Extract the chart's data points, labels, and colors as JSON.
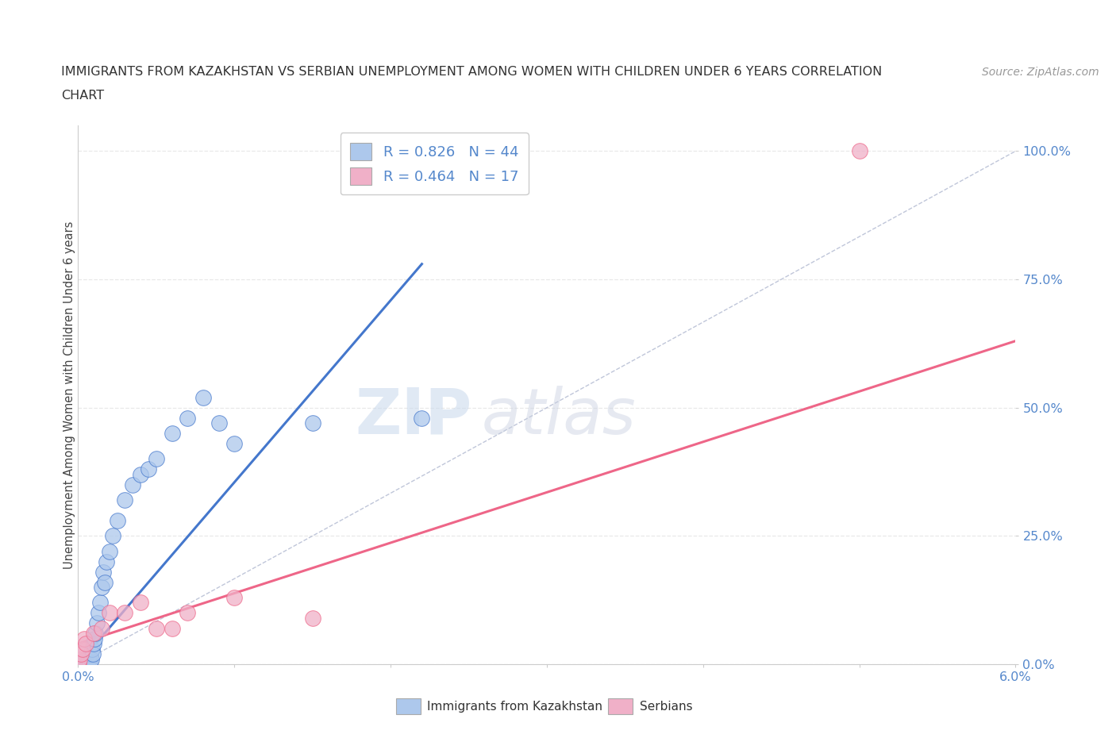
{
  "title_line1": "IMMIGRANTS FROM KAZAKHSTAN VS SERBIAN UNEMPLOYMENT AMONG WOMEN WITH CHILDREN UNDER 6 YEARS CORRELATION",
  "title_line2": "CHART",
  "source_text": "Source: ZipAtlas.com",
  "ylabel": "Unemployment Among Women with Children Under 6 years",
  "xmin": 0.0,
  "xmax": 0.06,
  "ymin": 0.0,
  "ymax": 1.05,
  "ytick_values": [
    0.0,
    0.25,
    0.5,
    0.75,
    1.0
  ],
  "xtick_values": [
    0.0,
    0.01,
    0.02,
    0.03,
    0.04,
    0.05,
    0.06
  ],
  "kaz_color": "#adc8ec",
  "ser_color": "#f0b0c8",
  "kaz_line_color": "#4477cc",
  "ser_line_color": "#ee6688",
  "ref_line_color": "#b0b8d0",
  "R_kaz": 0.826,
  "N_kaz": 44,
  "R_ser": 0.464,
  "N_ser": 17,
  "kaz_scatter_x": [
    5e-05,
    0.0001,
    0.00015,
    0.0002,
    0.00025,
    0.0003,
    0.00035,
    0.0004,
    0.00045,
    0.0005,
    0.00055,
    0.0006,
    0.00065,
    0.0007,
    0.00075,
    0.0008,
    0.00085,
    0.0009,
    0.00095,
    0.001,
    0.00105,
    0.0011,
    0.0012,
    0.0013,
    0.0014,
    0.0015,
    0.0016,
    0.0017,
    0.0018,
    0.002,
    0.0022,
    0.0025,
    0.003,
    0.0035,
    0.004,
    0.0045,
    0.005,
    0.006,
    0.007,
    0.008,
    0.009,
    0.01,
    0.015,
    0.022
  ],
  "kaz_scatter_y": [
    0.0,
    0.0,
    0.0,
    0.0,
    0.0,
    0.0,
    0.0,
    0.005,
    0.0,
    0.01,
    0.0,
    0.0,
    0.005,
    0.01,
    0.005,
    0.02,
    0.01,
    0.03,
    0.02,
    0.04,
    0.05,
    0.06,
    0.08,
    0.1,
    0.12,
    0.15,
    0.18,
    0.16,
    0.2,
    0.22,
    0.25,
    0.28,
    0.32,
    0.35,
    0.37,
    0.38,
    0.4,
    0.45,
    0.48,
    0.52,
    0.47,
    0.43,
    0.47,
    0.48
  ],
  "ser_scatter_x": [
    5e-05,
    0.0001,
    0.0002,
    0.0003,
    0.0004,
    0.0005,
    0.001,
    0.0015,
    0.002,
    0.003,
    0.004,
    0.005,
    0.006,
    0.007,
    0.01,
    0.015,
    0.05
  ],
  "ser_scatter_y": [
    0.0,
    0.01,
    0.02,
    0.03,
    0.05,
    0.04,
    0.06,
    0.07,
    0.1,
    0.1,
    0.12,
    0.07,
    0.07,
    0.1,
    0.13,
    0.09,
    1.0
  ],
  "kaz_regline_x": [
    0.0,
    0.022
  ],
  "kaz_regline_y": [
    0.0,
    0.78
  ],
  "ser_regline_x": [
    0.0,
    0.06
  ],
  "ser_regline_y": [
    0.04,
    0.63
  ],
  "ref_line_x": [
    0.0,
    0.06
  ],
  "ref_line_y": [
    0.0,
    1.0
  ],
  "watermark_zip": "ZIP",
  "watermark_atlas": "atlas",
  "background_color": "#ffffff",
  "grid_color": "#e8e8e8",
  "tick_label_color": "#5588cc"
}
